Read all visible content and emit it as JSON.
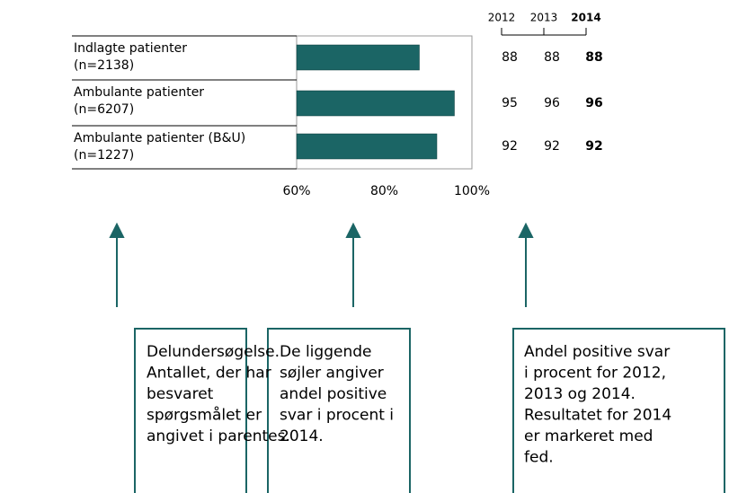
{
  "chart_data": {
    "type": "bar",
    "orientation": "horizontal",
    "categories": [
      [
        "Indlagte patienter",
        "(n=2138)"
      ],
      [
        "Ambulante patienter",
        "(n=6207)"
      ],
      [
        "Ambulante patienter (B&U)",
        "(n=1227)"
      ]
    ],
    "color": "#1b6565",
    "xlim": [
      60,
      100
    ],
    "xticks": [
      {
        "value": 60,
        "label": "60%"
      },
      {
        "value": 80,
        "label": "80%"
      },
      {
        "value": 100,
        "label": "100%"
      }
    ],
    "grid": false,
    "bar_series": 2,
    "series": [
      {
        "name": "2012",
        "values": [
          88,
          95,
          92
        ],
        "bold": false
      },
      {
        "name": "2013",
        "values": [
          88,
          96,
          92
        ],
        "bold": false
      },
      {
        "name": "2014",
        "values": [
          88,
          96,
          92
        ],
        "bold": true
      }
    ],
    "annotations": [
      [
        "Delundersøgelse.",
        "Antallet, der har",
        "besvaret",
        "spørgsmålet er",
        "angivet i parentes."
      ],
      [
        "De liggende",
        "søjler angiver",
        "andel positive",
        "svar i procent i",
        "2014."
      ],
      [
        "Andel positive svar",
        "i procent for 2012,",
        "2013 og 2014.",
        "Resultatet for 2014",
        "er markeret med",
        "fed."
      ]
    ]
  }
}
